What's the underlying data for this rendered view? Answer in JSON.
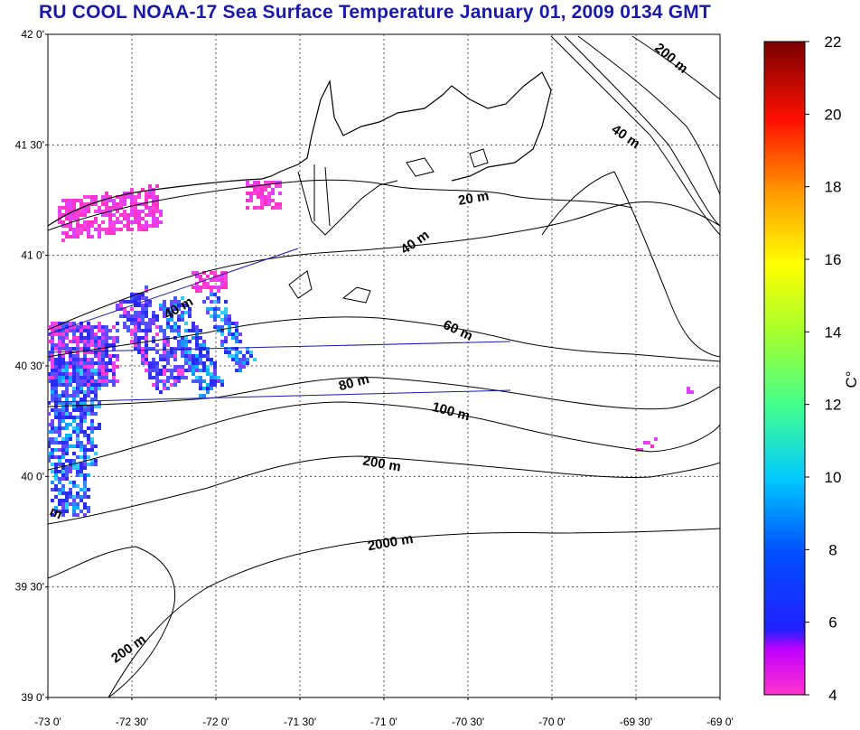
{
  "title": "RU COOL  NOAA-17 Sea Surface Temperature January 01, 2009 0134 GMT",
  "map": {
    "lat_ticks": [
      "42 0'",
      "41 30'",
      "41 0'",
      "40 30'",
      "40 0'",
      "39 30'",
      "39 0'"
    ],
    "lon_ticks": [
      "-73 0'",
      "-72 30'",
      "-72 0'",
      "-71 30'",
      "-71 0'",
      "-70 30'",
      "-70 0'",
      "-69 30'",
      "-69 0'"
    ],
    "lat_range": [
      39,
      42
    ],
    "lon_range": [
      -73,
      -69
    ],
    "grid": true,
    "contour_labels": [
      "200 m",
      "40 m",
      "20 m",
      "40 m",
      "40 m",
      "60 m",
      "80 m",
      "100 m",
      "200 m",
      "2000 m",
      "200 m",
      "m"
    ]
  },
  "colorbar": {
    "unit": "C°",
    "range": [
      4,
      22
    ],
    "ticks": [
      "22",
      "20",
      "18",
      "16",
      "14",
      "12",
      "10",
      "8",
      "6",
      "4"
    ]
  },
  "colors": {
    "title": "#1a1aa8",
    "grid": "#555555",
    "sst_warm_patch": "#ff33cc",
    "sst_cool_patch": "#3333ff"
  }
}
